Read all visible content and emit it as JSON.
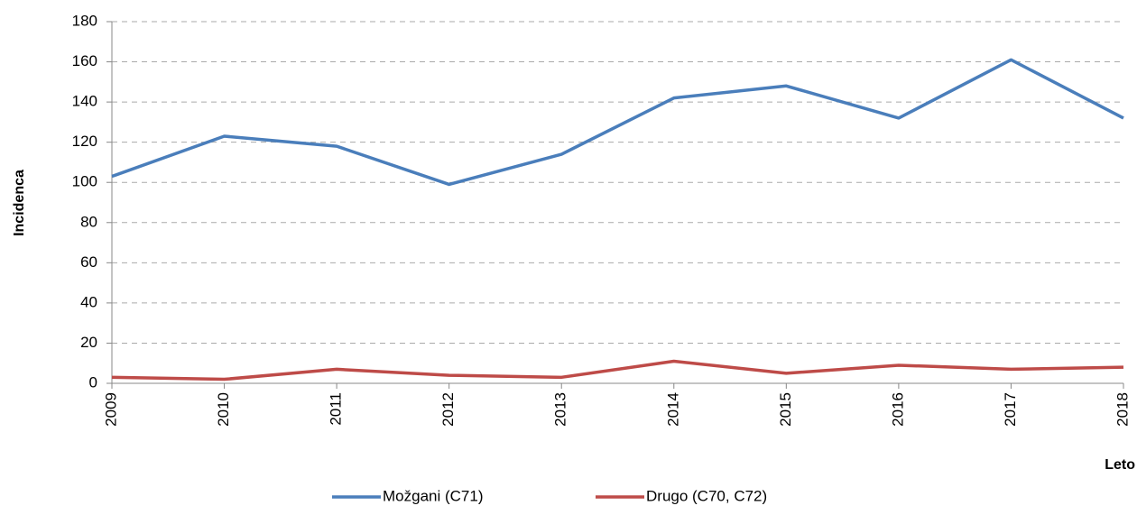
{
  "chart_data": {
    "type": "line",
    "y_label": "Incidenca",
    "x_label": "Leto",
    "x": [
      2009,
      2010,
      2011,
      2012,
      2013,
      2014,
      2015,
      2016,
      2017,
      2018
    ],
    "xlim": [
      2009,
      2018
    ],
    "xticks": [
      2009,
      2010,
      2011,
      2012,
      2013,
      2014,
      2015,
      2016,
      2017,
      2018
    ],
    "ylim": [
      0,
      180
    ],
    "yticks": [
      0,
      20,
      40,
      60,
      80,
      100,
      120,
      140,
      160,
      180
    ],
    "grid": true,
    "legend": "bottom",
    "series": [
      {
        "name": "Možgani (C71)",
        "color": "#4a7ebb",
        "values": [
          103,
          123,
          118,
          99,
          114,
          142,
          148,
          132,
          161,
          132
        ]
      },
      {
        "name": "Drugo (C70, C72)",
        "color": "#be4b48",
        "values": [
          3,
          2,
          7,
          4,
          3,
          11,
          5,
          9,
          7,
          8
        ]
      }
    ]
  }
}
